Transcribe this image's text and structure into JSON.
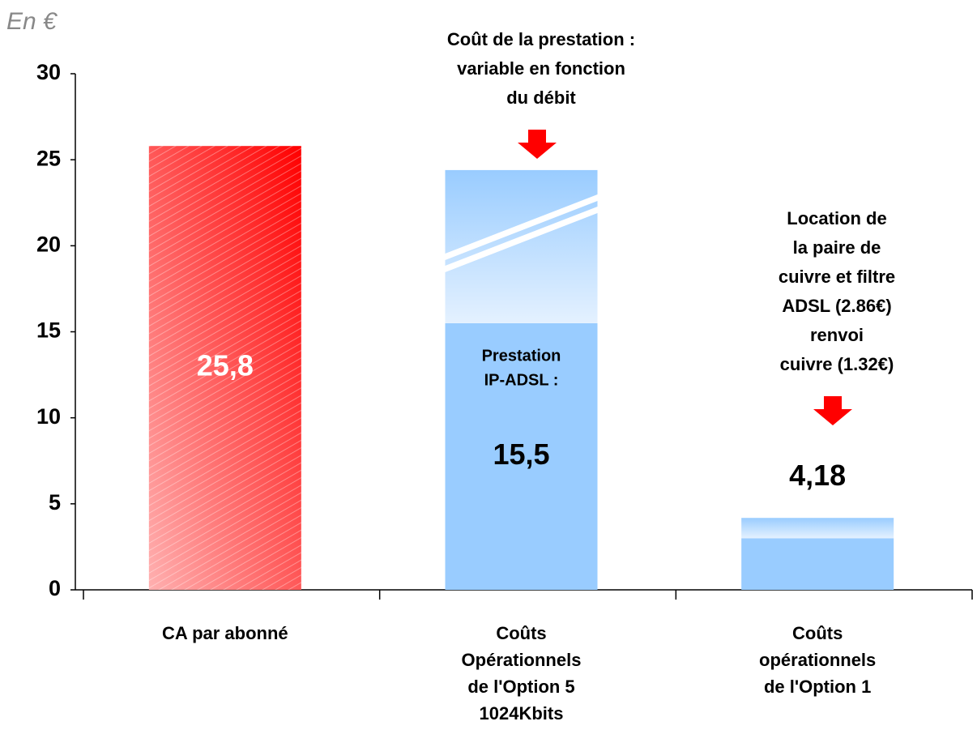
{
  "chart_data": {
    "type": "bar",
    "unit_note": "En €",
    "categories": [
      [
        "CA par abonné"
      ],
      [
        "Coûts",
        "Opérationnels",
        "de l'Option 5",
        "1024Kbits"
      ],
      [
        "Coûts",
        "opérationnels",
        "de l'Option 1"
      ]
    ],
    "series": [
      {
        "colors": [
          "#ff1010",
          "#99ccff",
          "#99ccff"
        ],
        "values": [
          25.8,
          15.5,
          3.0
        ]
      },
      {
        "color": "#99ccff",
        "values": [
          0,
          8.9,
          1.18
        ]
      }
    ],
    "data_labels": [
      {
        "value": 25.8,
        "label": "25,8",
        "position": "inside",
        "color": "#ffffff"
      },
      {
        "value": 15.5,
        "label": "15,5",
        "position": "inside",
        "color": "#000000"
      },
      {
        "value": 4.18,
        "label": "4,18",
        "position": "above",
        "color": "#000000"
      }
    ],
    "inner_note": [
      "Prestation",
      "IP-ADSL :"
    ],
    "annotations": [
      {
        "lines": [
          "Coût de la prestation :",
          "variable en fonction",
          "du débit"
        ]
      },
      {
        "lines": [
          "Location de",
          "la paire de",
          "cuivre et filtre",
          "ADSL (2.86€)",
          "renvoi",
          "cuivre (1.32€)"
        ]
      }
    ],
    "ylim": [
      0,
      30
    ],
    "yticks": [
      0,
      5,
      10,
      15,
      20,
      25,
      30
    ]
  }
}
